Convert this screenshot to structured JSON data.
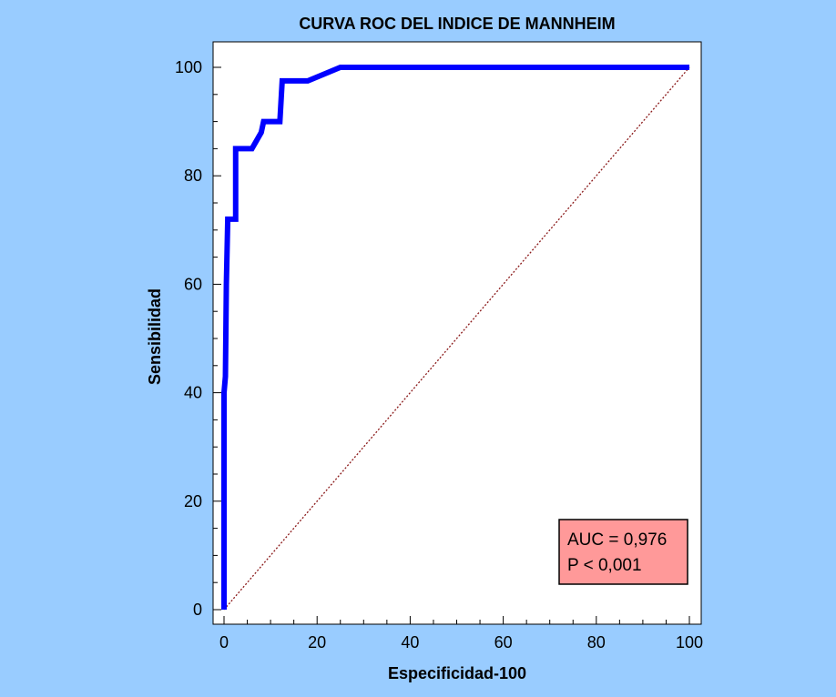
{
  "chart_data": {
    "type": "line",
    "title": "CURVA ROC DEL INDICE DE MANNHEIM",
    "xlabel": "Especificidad-100",
    "ylabel": "Sensibilidad",
    "xlim": [
      0,
      100
    ],
    "ylim": [
      0,
      100
    ],
    "xticks": [
      "0",
      "20",
      "40",
      "60",
      "80",
      "100"
    ],
    "yticks": [
      "0",
      "20",
      "40",
      "60",
      "80",
      "100"
    ],
    "grid": false,
    "series": [
      {
        "x": [
          0,
          0,
          0.3,
          0.5,
          0.8,
          2.5,
          2.5,
          6,
          8,
          8.5,
          12,
          12.5,
          16,
          18,
          25,
          100
        ],
        "y": [
          0,
          40,
          43,
          60,
          72,
          72,
          85,
          85,
          88,
          90,
          90,
          97.5,
          97.5,
          97.5,
          100,
          100
        ],
        "color": "#0000ff"
      },
      {
        "x": [
          0,
          100
        ],
        "y": [
          0,
          100
        ],
        "color": "#8b1a1a",
        "style": "dotted"
      }
    ],
    "annotation": {
      "lines": [
        "AUC = 0,976",
        "P < 0,001"
      ],
      "background": "#ff9999"
    }
  },
  "colors": {
    "background": "#99ccff",
    "plot_area": "#ffffff",
    "roc_curve": "#0000ff",
    "reference_line": "#8b1a1a",
    "annotation_box": "#ff9999"
  }
}
